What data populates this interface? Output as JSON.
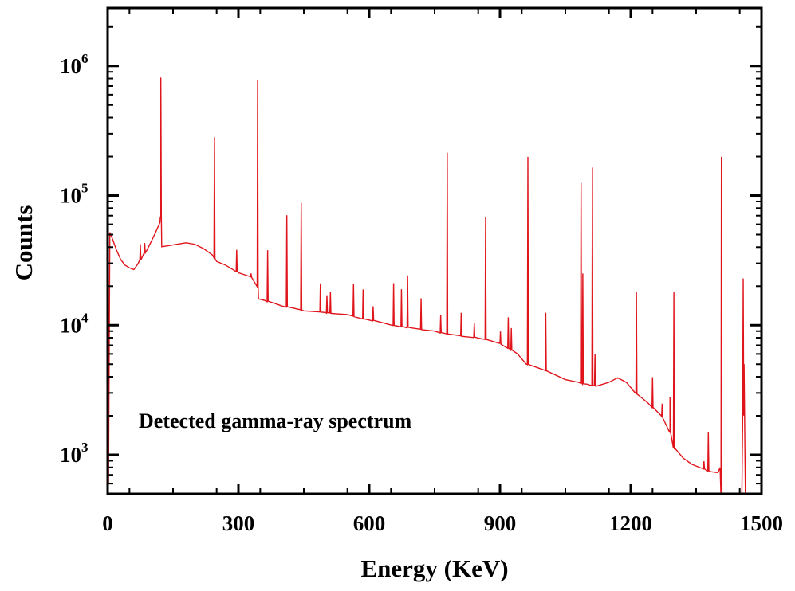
{
  "chart_data": {
    "type": "line",
    "title": "",
    "xlabel": "Energy (KeV)",
    "ylabel": "Counts",
    "xlim": [
      0,
      1500
    ],
    "ylim": [
      500,
      2800000
    ],
    "yscale": "log",
    "xticks": [
      0,
      300,
      600,
      900,
      1200,
      1500
    ],
    "xtick_labels": [
      "0",
      "300",
      "600",
      "900",
      "1200",
      "1500"
    ],
    "yticks": [
      {
        "base": "10",
        "exp": "3",
        "value": 1000
      },
      {
        "base": "10",
        "exp": "4",
        "value": 10000
      },
      {
        "base": "10",
        "exp": "5",
        "value": 100000
      },
      {
        "base": "10",
        "exp": "6",
        "value": 1000000
      }
    ],
    "annotation": "Detected gamma-ray spectrum",
    "series": [
      {
        "name": "Detected gamma-ray spectrum",
        "color": "#e0151b",
        "continuum": [
          [
            2,
            600
          ],
          [
            5,
            52000
          ],
          [
            10,
            47000
          ],
          [
            20,
            38000
          ],
          [
            30,
            32000
          ],
          [
            40,
            29000
          ],
          [
            50,
            27500
          ],
          [
            60,
            27000
          ],
          [
            70,
            30000
          ],
          [
            80,
            34000
          ],
          [
            90,
            38000
          ],
          [
            100,
            44000
          ],
          [
            110,
            52000
          ],
          [
            120,
            62000
          ],
          [
            122,
            68000
          ],
          [
            124,
            40000
          ],
          [
            140,
            41000
          ],
          [
            160,
            42500
          ],
          [
            180,
            43000
          ],
          [
            200,
            42000
          ],
          [
            220,
            39000
          ],
          [
            240,
            35000
          ],
          [
            250,
            31000
          ],
          [
            270,
            29000
          ],
          [
            300,
            25500
          ],
          [
            330,
            23500
          ],
          [
            343,
            22000
          ],
          [
            346,
            16000
          ],
          [
            360,
            15500
          ],
          [
            400,
            14000
          ],
          [
            450,
            13000
          ],
          [
            500,
            12500
          ],
          [
            550,
            12000
          ],
          [
            600,
            11000
          ],
          [
            650,
            10000
          ],
          [
            700,
            9500
          ],
          [
            750,
            9000
          ],
          [
            780,
            8500
          ],
          [
            800,
            8300
          ],
          [
            850,
            8000
          ],
          [
            900,
            7200
          ],
          [
            940,
            6000
          ],
          [
            960,
            5000
          ],
          [
            1000,
            4500
          ],
          [
            1050,
            3800
          ],
          [
            1080,
            3600
          ],
          [
            1100,
            3500
          ],
          [
            1120,
            3400
          ],
          [
            1150,
            3600
          ],
          [
            1170,
            3900
          ],
          [
            1190,
            3600
          ],
          [
            1210,
            3000
          ],
          [
            1240,
            2500
          ],
          [
            1270,
            2000
          ],
          [
            1290,
            1500
          ],
          [
            1300,
            1100
          ],
          [
            1320,
            950
          ],
          [
            1340,
            850
          ],
          [
            1360,
            800
          ],
          [
            1380,
            750
          ],
          [
            1400,
            730
          ],
          [
            1405,
            800
          ],
          [
            1407,
            500
          ],
          [
            1455,
            500
          ],
          [
            1460,
            5000
          ],
          [
            1463,
            500
          ]
        ],
        "peaks": [
          {
            "x": 75,
            "y": 42000
          },
          {
            "x": 85,
            "y": 43000
          },
          {
            "x": 122,
            "y": 820000
          },
          {
            "x": 245,
            "y": 280000
          },
          {
            "x": 296,
            "y": 38000
          },
          {
            "x": 329,
            "y": 25000
          },
          {
            "x": 344,
            "y": 780000
          },
          {
            "x": 367,
            "y": 38000
          },
          {
            "x": 411,
            "y": 70000
          },
          {
            "x": 444,
            "y": 88000
          },
          {
            "x": 488,
            "y": 21000
          },
          {
            "x": 503,
            "y": 17000
          },
          {
            "x": 511,
            "y": 18000
          },
          {
            "x": 564,
            "y": 21000
          },
          {
            "x": 586,
            "y": 19000
          },
          {
            "x": 609,
            "y": 14000
          },
          {
            "x": 656,
            "y": 21000
          },
          {
            "x": 674,
            "y": 19000
          },
          {
            "x": 688,
            "y": 24000
          },
          {
            "x": 719,
            "y": 16000
          },
          {
            "x": 764,
            "y": 12000
          },
          {
            "x": 779,
            "y": 215000
          },
          {
            "x": 811,
            "y": 12500
          },
          {
            "x": 841,
            "y": 10500
          },
          {
            "x": 867,
            "y": 68000
          },
          {
            "x": 901,
            "y": 9000
          },
          {
            "x": 919,
            "y": 11500
          },
          {
            "x": 926,
            "y": 9500
          },
          {
            "x": 964,
            "y": 200000
          },
          {
            "x": 1005,
            "y": 12500
          },
          {
            "x": 1086,
            "y": 125000
          },
          {
            "x": 1090,
            "y": 25000
          },
          {
            "x": 1112,
            "y": 165000
          },
          {
            "x": 1118,
            "y": 6000
          },
          {
            "x": 1213,
            "y": 18000
          },
          {
            "x": 1250,
            "y": 4000
          },
          {
            "x": 1272,
            "y": 2500
          },
          {
            "x": 1290,
            "y": 2800
          },
          {
            "x": 1299,
            "y": 18000
          },
          {
            "x": 1368,
            "y": 900
          },
          {
            "x": 1378,
            "y": 1500
          },
          {
            "x": 1408,
            "y": 200000
          },
          {
            "x": 1458,
            "y": 23000
          }
        ]
      }
    ]
  }
}
